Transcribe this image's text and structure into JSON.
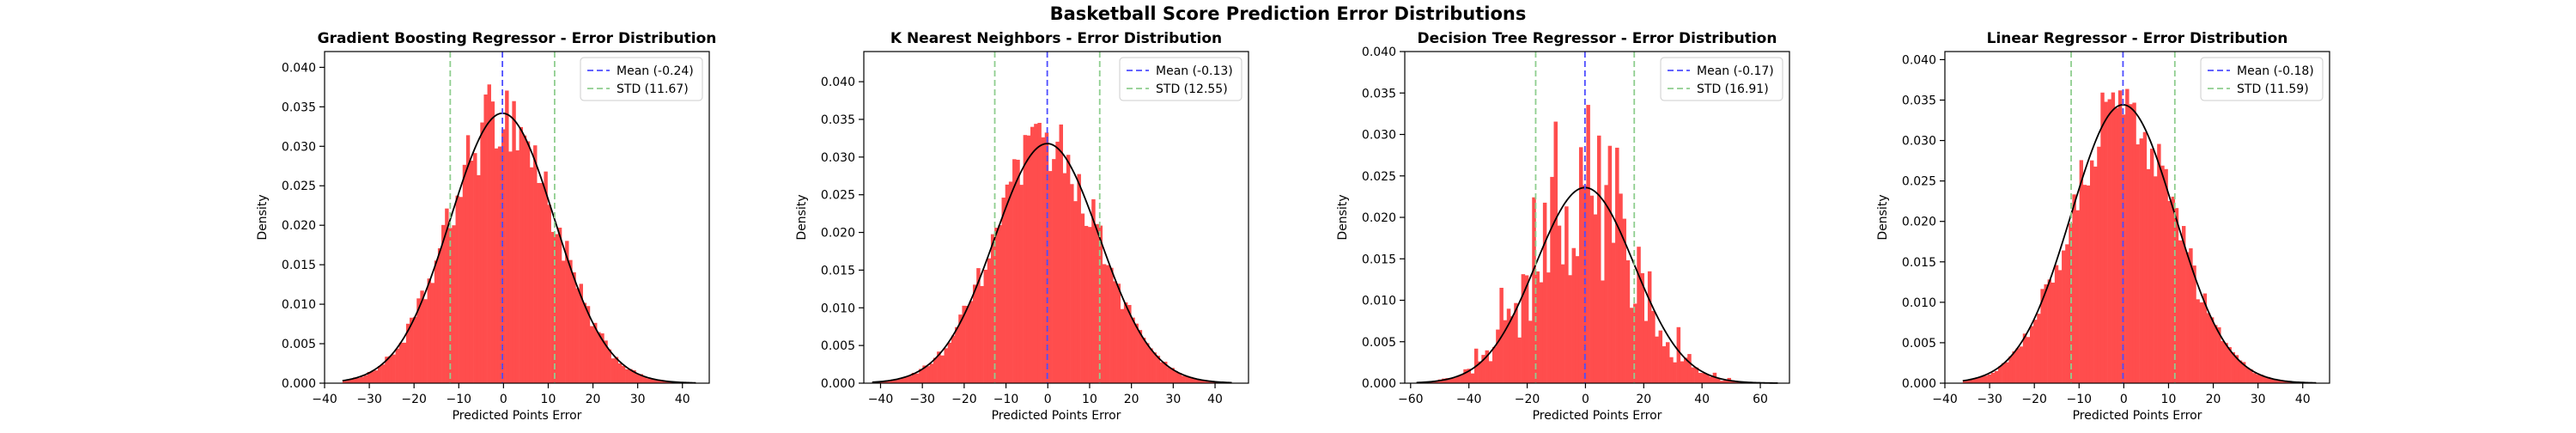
{
  "figure": {
    "suptitle": "Basketball Score Prediction Error Distributions",
    "colors": {
      "bars": "#ff4d4d",
      "curve": "#000000",
      "mean": "#4d4dff",
      "std": "#8fce8f",
      "axes": "#000000"
    }
  },
  "chart_data": [
    {
      "type": "histogram",
      "title": "Gradient Boosting Regressor - Error Distribution",
      "xlabel": "Predicted Points Error",
      "ylabel": "Density",
      "xlim": [
        -40,
        46
      ],
      "ylim": [
        0,
        0.042
      ],
      "xticks": [
        -40,
        -30,
        -20,
        -10,
        0,
        10,
        20,
        30,
        40
      ],
      "yticks": [
        0.0,
        0.005,
        0.01,
        0.015,
        0.02,
        0.025,
        0.03,
        0.035,
        0.04
      ],
      "ytick_labels": [
        "0.000",
        "0.005",
        "0.010",
        "0.015",
        "0.020",
        "0.025",
        "0.030",
        "0.035",
        "0.040"
      ],
      "mean": -0.24,
      "std": 11.67,
      "hist_range": [
        -36,
        43
      ],
      "bins": 100,
      "legend": {
        "position": "top-right",
        "entries": [
          "Mean (-0.24)",
          "STD (11.67)"
        ]
      }
    },
    {
      "type": "histogram",
      "title": "K Nearest Neighbors - Error Distribution",
      "xlabel": "Predicted Points Error",
      "ylabel": "Density",
      "xlim": [
        -44,
        48
      ],
      "ylim": [
        0,
        0.044
      ],
      "xticks": [
        -40,
        -30,
        -20,
        -10,
        0,
        10,
        20,
        30,
        40
      ],
      "yticks": [
        0.0,
        0.005,
        0.01,
        0.015,
        0.02,
        0.025,
        0.03,
        0.035,
        0.04
      ],
      "ytick_labels": [
        "0.000",
        "0.005",
        "0.010",
        "0.015",
        "0.020",
        "0.025",
        "0.030",
        "0.035",
        "0.040"
      ],
      "mean": -0.13,
      "std": 12.55,
      "hist_range": [
        -42,
        44
      ],
      "bins": 100,
      "legend": {
        "position": "top-right",
        "entries": [
          "Mean (-0.13)",
          "STD (12.55)"
        ]
      }
    },
    {
      "type": "histogram",
      "title": "Decision Tree Regressor - Error Distribution",
      "xlabel": "Predicted Points Error",
      "ylabel": "Density",
      "xlim": [
        -62,
        70
      ],
      "ylim": [
        0,
        0.04
      ],
      "xticks": [
        -60,
        -40,
        -20,
        0,
        20,
        40,
        60
      ],
      "yticks": [
        0.0,
        0.005,
        0.01,
        0.015,
        0.02,
        0.025,
        0.03,
        0.035,
        0.04
      ],
      "ytick_labels": [
        "0.000",
        "0.005",
        "0.010",
        "0.015",
        "0.020",
        "0.025",
        "0.030",
        "0.035",
        "0.040"
      ],
      "mean": -0.17,
      "std": 16.91,
      "hist_range": [
        -58,
        66
      ],
      "bins": 100,
      "legend": {
        "position": "top-right",
        "entries": [
          "Mean (-0.17)",
          "STD (16.91)"
        ]
      }
    },
    {
      "type": "histogram",
      "title": "Linear Regressor - Error Distribution",
      "xlabel": "Predicted Points Error",
      "ylabel": "Density",
      "xlim": [
        -40,
        46
      ],
      "ylim": [
        0,
        0.041
      ],
      "xticks": [
        -40,
        -30,
        -20,
        -10,
        0,
        10,
        20,
        30,
        40
      ],
      "yticks": [
        0.0,
        0.005,
        0.01,
        0.015,
        0.02,
        0.025,
        0.03,
        0.035,
        0.04
      ],
      "ytick_labels": [
        "0.000",
        "0.005",
        "0.010",
        "0.015",
        "0.020",
        "0.025",
        "0.030",
        "0.035",
        "0.040"
      ],
      "mean": -0.18,
      "std": 11.59,
      "hist_range": [
        -36,
        43
      ],
      "bins": 100,
      "legend": {
        "position": "top-right",
        "entries": [
          "Mean (-0.18)",
          "STD (11.59)"
        ]
      }
    }
  ]
}
